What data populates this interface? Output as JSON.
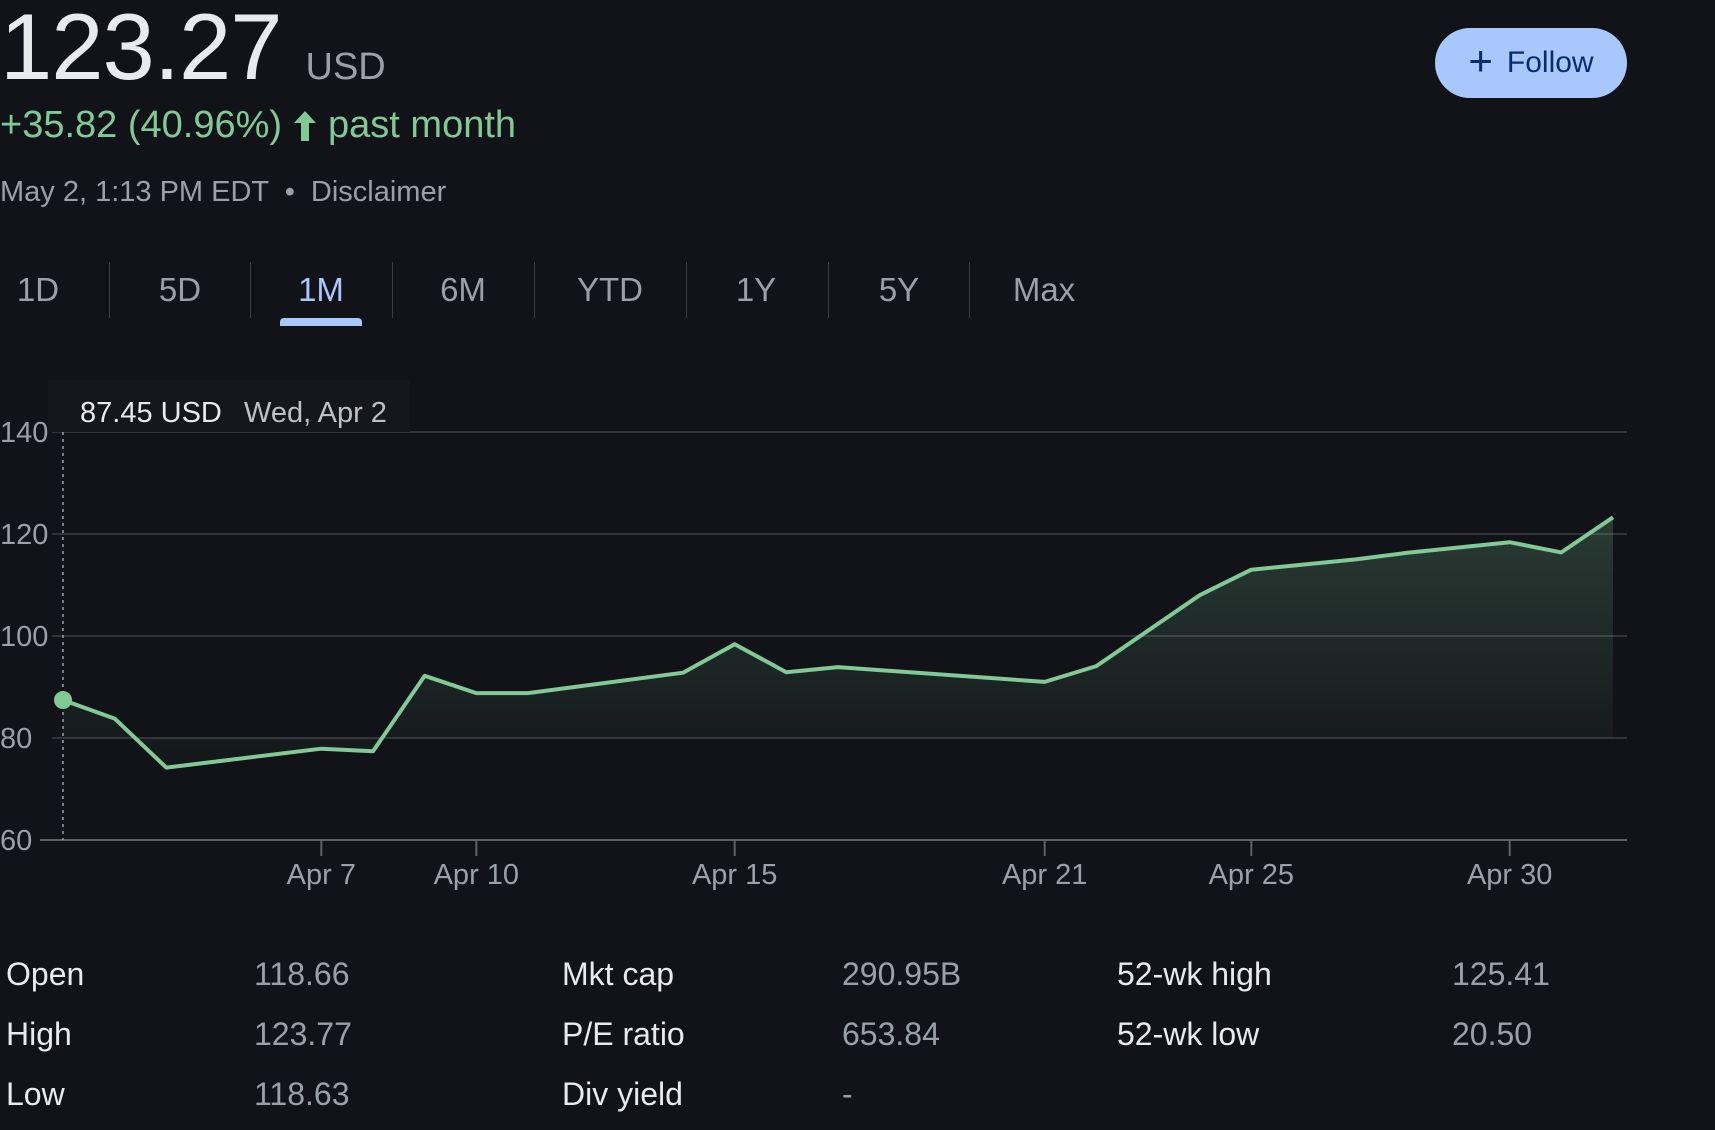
{
  "quote": {
    "price": "123.27",
    "currency": "USD",
    "change_text": "+35.82 (40.96%)",
    "change_period": "past month",
    "timestamp": "May 2, 1:13 PM EDT",
    "separator": "•",
    "disclaimer": "Disclaimer"
  },
  "follow_button": {
    "label": "Follow",
    "icon": "plus-icon"
  },
  "tabs": [
    {
      "label": "1D",
      "active": false
    },
    {
      "label": "5D",
      "active": false
    },
    {
      "label": "1M",
      "active": true
    },
    {
      "label": "6M",
      "active": false
    },
    {
      "label": "YTD",
      "active": false
    },
    {
      "label": "1Y",
      "active": false
    },
    {
      "label": "5Y",
      "active": false
    },
    {
      "label": "Max",
      "active": false
    }
  ],
  "tooltip": {
    "value": "87.45 USD",
    "date": "Wed, Apr 2"
  },
  "chart_data": {
    "type": "area",
    "ylim": [
      60,
      140
    ],
    "y_ticks": [
      60,
      80,
      100,
      120,
      140
    ],
    "x_ticks": [
      {
        "label": "Apr 7",
        "day": 7
      },
      {
        "label": "Apr 10",
        "day": 10
      },
      {
        "label": "Apr 15",
        "day": 15
      },
      {
        "label": "Apr 21",
        "day": 21
      },
      {
        "label": "Apr 25",
        "day": 25
      },
      {
        "label": "Apr 30",
        "day": 30
      }
    ],
    "grid": true,
    "series": [
      {
        "values": [
          {
            "day": 2,
            "y": 87.45
          },
          {
            "day": 3,
            "y": 83.8
          },
          {
            "day": 4,
            "y": 74.2
          },
          {
            "day": 7,
            "y": 77.9
          },
          {
            "day": 8,
            "y": 77.4
          },
          {
            "day": 9,
            "y": 92.2
          },
          {
            "day": 10,
            "y": 88.8
          },
          {
            "day": 11,
            "y": 88.8
          },
          {
            "day": 14,
            "y": 92.8
          },
          {
            "day": 15,
            "y": 98.4
          },
          {
            "day": 16,
            "y": 92.9
          },
          {
            "day": 17,
            "y": 93.9
          },
          {
            "day": 21,
            "y": 91.0
          },
          {
            "day": 22,
            "y": 94.1
          },
          {
            "day": 24,
            "y": 108.0
          },
          {
            "day": 25,
            "y": 113.0
          },
          {
            "day": 26,
            "y": 114.0
          },
          {
            "day": 27,
            "y": 115.0
          },
          {
            "day": 28,
            "y": 116.3
          },
          {
            "day": 30,
            "y": 118.4
          },
          {
            "day": 31,
            "y": 116.4
          },
          {
            "day": 32,
            "y": 123.27
          }
        ],
        "color": "#81c995"
      }
    ]
  },
  "stats": [
    {
      "label": "Open",
      "value": "118.66"
    },
    {
      "label": "High",
      "value": "123.77"
    },
    {
      "label": "Low",
      "value": "118.63"
    },
    {
      "label": "Mkt cap",
      "value": "290.95B"
    },
    {
      "label": "P/E ratio",
      "value": "653.84"
    },
    {
      "label": "Div yield",
      "value": "-"
    },
    {
      "label": "52-wk high",
      "value": "125.41"
    },
    {
      "label": "52-wk low",
      "value": "20.50"
    }
  ]
}
